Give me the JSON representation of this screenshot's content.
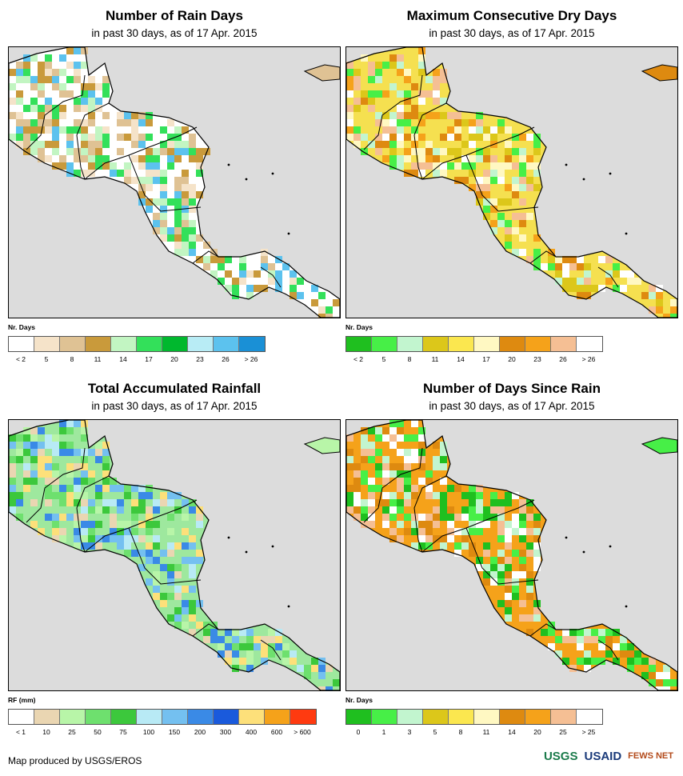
{
  "panels": [
    {
      "title": "Number of Rain Days",
      "subtitle": "in past 30 days, as of 17 Apr. 2015",
      "legend_title": "Nr. Days",
      "legend_colors": [
        "#ffffff",
        "#f5e3c9",
        "#dfc294",
        "#c99a3b",
        "#c2f5c2",
        "#33e05a",
        "#00b82e",
        "#b8ecf5",
        "#5cc2ee",
        "#1a90d6"
      ],
      "legend_labels": [
        "< 2",
        "5",
        "8",
        "11",
        "14",
        "17",
        "20",
        "23",
        "26",
        "> 26"
      ],
      "map_colors": {
        "bg": "#dcdcdc",
        "land": "#ffffff",
        "patches": [
          "#f5e3c9",
          "#dfc294",
          "#c99a3b",
          "#c2f5c2",
          "#33e05a",
          "#5cc2ee"
        ]
      }
    },
    {
      "title": "Maximum Consecutive Dry Days",
      "subtitle": "in past 30 days, as of 17 Apr. 2015",
      "legend_title": "Nr. Days",
      "legend_colors": [
        "#1fbf1f",
        "#47ef47",
        "#c2f5cf",
        "#dcc71a",
        "#fbe74f",
        "#fff8c2",
        "#de8a10",
        "#f5a21a",
        "#f5bf94",
        "#ffffff"
      ],
      "legend_labels": [
        "< 2",
        "5",
        "8",
        "11",
        "14",
        "17",
        "20",
        "23",
        "26",
        "> 26"
      ],
      "map_colors": {
        "bg": "#dcdcdc",
        "land": "#f5e050",
        "patches": [
          "#dcc71a",
          "#de8a10",
          "#f5a21a",
          "#fff8c2",
          "#ffffff",
          "#47ef47",
          "#c2f5cf",
          "#f5bf94"
        ]
      }
    },
    {
      "title": "Total Accumulated Rainfall",
      "subtitle": "in past 30 days, as of 17 Apr. 2015",
      "legend_title": "RF (mm)",
      "legend_colors": [
        "#ffffff",
        "#ead6b2",
        "#b8f5a8",
        "#6ee06e",
        "#3cc83c",
        "#b8eaf5",
        "#74c0f0",
        "#3a8ae6",
        "#1a5adc",
        "#fde07a",
        "#f5a21a",
        "#ff3a10"
      ],
      "legend_labels": [
        "< 1",
        "10",
        "25",
        "50",
        "75",
        "100",
        "150",
        "200",
        "300",
        "400",
        "600",
        "> 600"
      ],
      "map_colors": {
        "bg": "#dcdcdc",
        "land": "#9ee89e",
        "patches": [
          "#ead6b2",
          "#b8f5a8",
          "#6ee06e",
          "#3cc83c",
          "#b8eaf5",
          "#74c0f0",
          "#3a8ae6",
          "#fde07a"
        ]
      }
    },
    {
      "title": "Number of Days Since Rain",
      "subtitle": "in past 30 days, as of 17 Apr. 2015",
      "legend_title": "Nr. Days",
      "legend_colors": [
        "#1fbf1f",
        "#47ef47",
        "#c2f5cf",
        "#dcc71a",
        "#fbe74f",
        "#fff8c2",
        "#de8a10",
        "#f5a21a",
        "#f5bf94",
        "#ffffff"
      ],
      "legend_labels": [
        "0",
        "1",
        "3",
        "5",
        "8",
        "11",
        "14",
        "20",
        "25",
        "> 25"
      ],
      "map_colors": {
        "bg": "#dcdcdc",
        "land": "#f5a21a",
        "patches": [
          "#1fbf1f",
          "#47ef47",
          "#c2f5cf",
          "#de8a10",
          "#ffffff",
          "#f5bf94"
        ]
      }
    }
  ],
  "footer": {
    "credit": "Map produced by USGS/EROS",
    "logos": [
      "USGS",
      "USAID",
      "FEWS NET"
    ]
  }
}
